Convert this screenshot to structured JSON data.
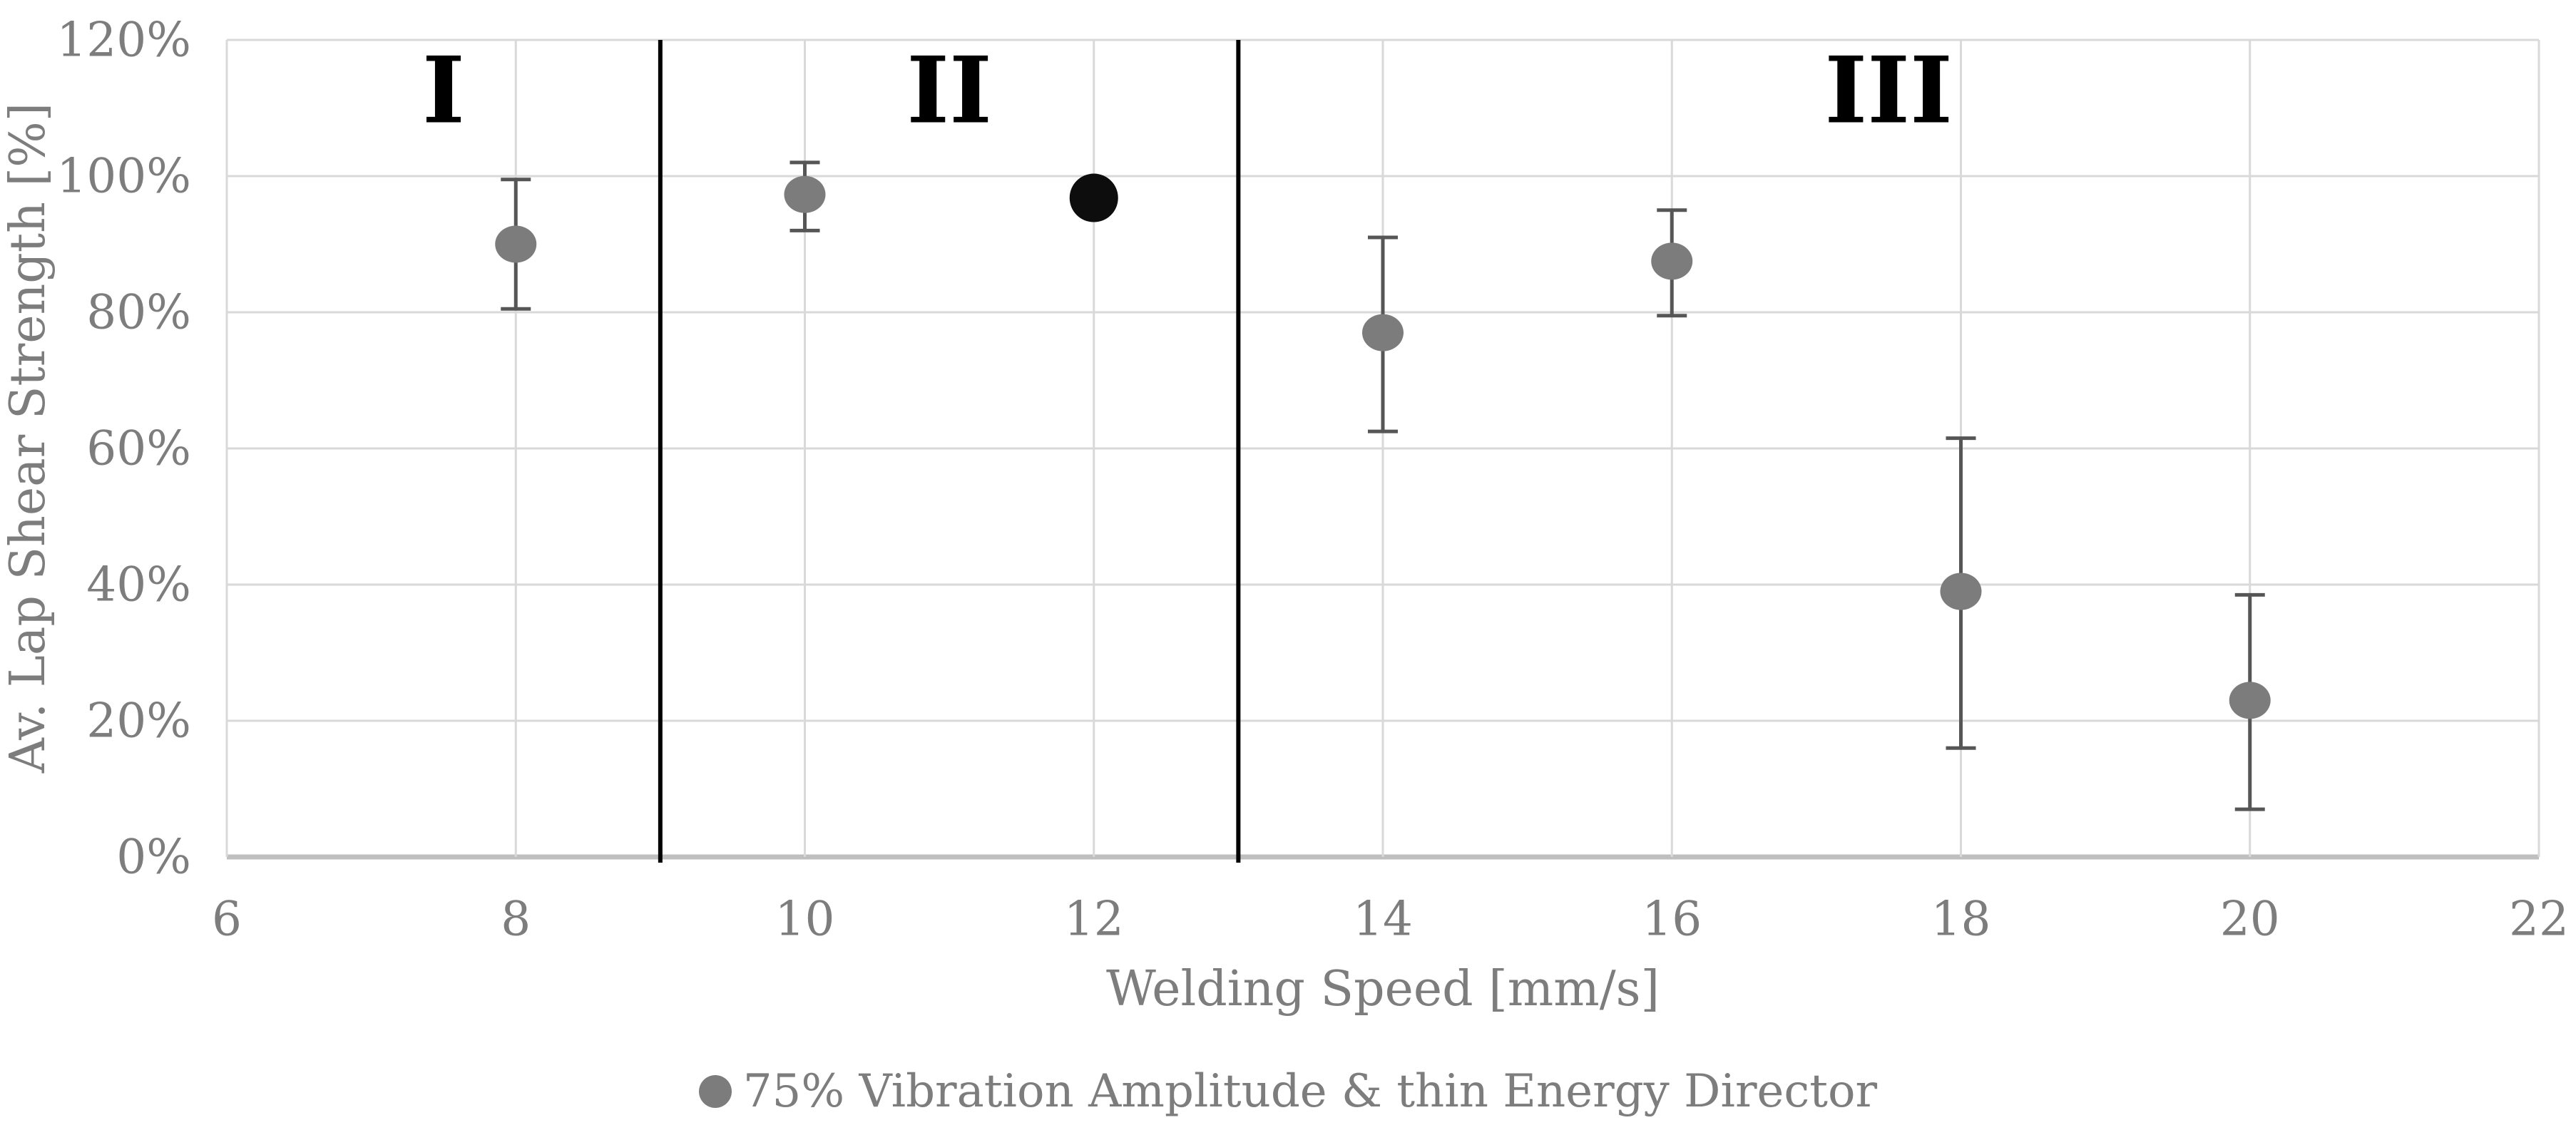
{
  "chart_data": {
    "type": "scatter",
    "title": "",
    "xlabel": "Welding Speed [mm/s]",
    "ylabel": "Av. Lap Shear Strength [%]",
    "xlim": [
      6,
      22
    ],
    "ylim": [
      0,
      120
    ],
    "x_ticks": [
      "6",
      "8",
      "10",
      "12",
      "14",
      "16",
      "18",
      "20",
      "22"
    ],
    "x_tick_values": [
      6,
      8,
      10,
      12,
      14,
      16,
      18,
      20,
      22
    ],
    "y_ticks": [
      "0%",
      "20%",
      "40%",
      "60%",
      "80%",
      "100%",
      "120%"
    ],
    "y_tick_values": [
      0,
      20,
      40,
      60,
      80,
      100,
      120
    ],
    "grid": true,
    "legend_position": "bottom-center",
    "series": [
      {
        "name": "75% Vibration Amplitude & thin Energy Director",
        "marker": "circle",
        "points": [
          {
            "x": 8,
            "y": 90.0,
            "err_low": 80.5,
            "err_high": 99.5
          },
          {
            "x": 10,
            "y": 97.3,
            "err_low": 92.0,
            "err_high": 102.0
          },
          {
            "x": 12,
            "y": 96.8,
            "highlight": true
          },
          {
            "x": 14,
            "y": 77.0,
            "err_low": 62.5,
            "err_high": 91.0
          },
          {
            "x": 16,
            "y": 87.5,
            "err_low": 79.5,
            "err_high": 95.0
          },
          {
            "x": 18,
            "y": 39.0,
            "err_low": 16.0,
            "err_high": 61.5
          },
          {
            "x": 20,
            "y": 23.0,
            "err_low": 7.0,
            "err_high": 38.5
          }
        ]
      }
    ],
    "region_dividers_x": [
      9,
      13
    ],
    "region_labels": [
      {
        "text": "I",
        "x": 7.5,
        "y": 112.5
      },
      {
        "text": "II",
        "x": 11.0,
        "y": 112.5
      },
      {
        "text": "III",
        "x": 17.5,
        "y": 112.5
      }
    ]
  },
  "axes": {
    "x_title": "Welding Speed [mm/s]",
    "y_title": "Av. Lap Shear Strength [%]"
  },
  "legend": {
    "label": "75% Vibration Amplitude & thin Energy Director"
  },
  "colors": {
    "marker_gray": "#7C7C7C",
    "marker_black": "#0D0D0D",
    "error_bar": "#565656",
    "gridline": "#D9D9D9",
    "axis_line": "#BFBFBF",
    "divider": "#000000",
    "tick_text": "#7D7D7D",
    "region_label_text": "#000000",
    "background": "#FFFFFF"
  }
}
